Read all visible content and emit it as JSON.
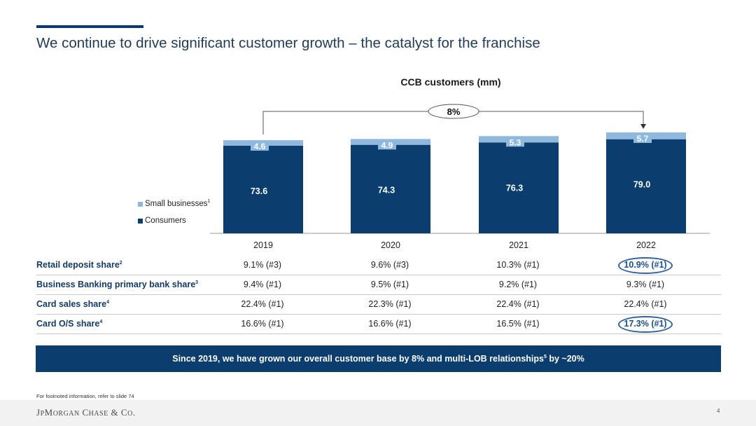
{
  "slide": {
    "title": "We continue to drive significant customer growth – the catalyst for the franchise",
    "footnote": "For footnoted information, refer to slide 74",
    "page_number": "4",
    "logo_text": "JPMorgan Chase & Co.",
    "banner": {
      "text_before": "Since 2019, we have grown our overall customer base by 8% and multi-LOB relationships",
      "sup": "5",
      "text_after": " by ~20%"
    }
  },
  "chart_data": {
    "type": "bar",
    "stacked": true,
    "title": "CCB customers (mm)",
    "categories": [
      "2019",
      "2020",
      "2021",
      "2022"
    ],
    "series": [
      {
        "name": "Consumers",
        "values": [
          73.6,
          74.3,
          76.3,
          79.0
        ],
        "labels": [
          "73.6",
          "74.3",
          "76.3",
          "79.0"
        ],
        "color": "#0b3d6f"
      },
      {
        "name": "Small businesses",
        "name_sup": "1",
        "values": [
          4.6,
          4.9,
          5.3,
          5.7
        ],
        "labels": [
          "4.6",
          "4.9",
          "5.3",
          "5.7"
        ],
        "color": "#8fb8df"
      }
    ],
    "annotation": {
      "text": "8%",
      "from": "2019",
      "to": "2022"
    },
    "legend_placement": "left"
  },
  "table": {
    "rows": [
      {
        "label": "Retail deposit share",
        "sup": "2",
        "values": [
          "9.1% (#3)",
          "9.6% (#3)",
          "10.3% (#1)",
          "10.9% (#1)"
        ],
        "highlight": [
          false,
          false,
          false,
          true
        ]
      },
      {
        "label": "Business Banking primary bank share",
        "sup": "3",
        "values": [
          "9.4% (#1)",
          "9.5% (#1)",
          "9.2% (#1)",
          "9.3% (#1)"
        ],
        "highlight": [
          false,
          false,
          false,
          false
        ]
      },
      {
        "label": "Card sales share",
        "sup": "4",
        "values": [
          "22.4% (#1)",
          "22.3% (#1)",
          "22.4% (#1)",
          "22.4% (#1)"
        ],
        "highlight": [
          false,
          false,
          false,
          false
        ]
      },
      {
        "label": "Card O/S share",
        "sup": "4",
        "values": [
          "16.6% (#1)",
          "16.6% (#1)",
          "16.5% (#1)",
          "17.3% (#1)"
        ],
        "highlight": [
          false,
          false,
          false,
          true
        ]
      }
    ]
  },
  "colors": {
    "navy": "#0b3d6f",
    "light_blue": "#8fb8df",
    "highlight_ring": "#2e63a6"
  }
}
